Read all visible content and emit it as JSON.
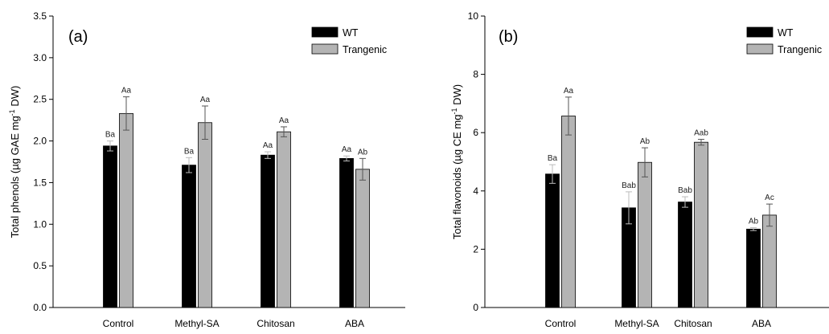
{
  "colors": {
    "WT": "#000000",
    "Trangenic": "#b4b4b4",
    "axis": "#000000",
    "error_bar": "#555555"
  },
  "chart_data": [
    {
      "type": "bar",
      "panel_label": "(a)",
      "ylabel_parts": [
        "Total phenols (µg GAE mg",
        "-1",
        " DW)"
      ],
      "categories": [
        "Control",
        "Methyl-SA",
        "Chitosan",
        "ABA"
      ],
      "ylim": [
        0,
        3.5
      ],
      "yticks": [
        "0.0",
        "0.5",
        "1.0",
        "1.5",
        "2.0",
        "2.5",
        "3.0",
        "3.5"
      ],
      "legend_position": "top-right",
      "series": [
        {
          "name": "WT",
          "values": [
            1.94,
            1.71,
            1.83,
            1.79
          ],
          "errors": [
            0.06,
            0.09,
            0.04,
            0.03
          ],
          "letters": [
            "Ba",
            "Ba",
            "Aa",
            "Aa"
          ]
        },
        {
          "name": "Trangenic",
          "values": [
            2.33,
            2.22,
            2.11,
            1.66
          ],
          "errors": [
            0.2,
            0.2,
            0.06,
            0.13
          ],
          "letters": [
            "Aa",
            "Aa",
            "Aa",
            "Ab"
          ]
        }
      ]
    },
    {
      "type": "bar",
      "panel_label": "(b)",
      "ylabel_parts": [
        "Total flavonoids (µg CE mg",
        "-1",
        " DW)"
      ],
      "categories": [
        "Control",
        "Methyl-SA",
        "Chitosan",
        "ABA"
      ],
      "ylim": [
        0,
        10
      ],
      "yticks": [
        "0",
        "2",
        "4",
        "6",
        "8",
        "10"
      ],
      "legend_position": "top-right",
      "series": [
        {
          "name": "WT",
          "values": [
            4.58,
            3.42,
            3.62,
            2.69
          ],
          "errors": [
            0.32,
            0.55,
            0.18,
            0.05
          ],
          "letters": [
            "Ba",
            "Bab",
            "Bab",
            "Ab"
          ]
        },
        {
          "name": "Trangenic",
          "values": [
            6.57,
            4.98,
            5.67,
            3.17
          ],
          "errors": [
            0.65,
            0.5,
            0.1,
            0.38
          ],
          "letters": [
            "Aa",
            "Ab",
            "Aab",
            "Ac"
          ]
        }
      ]
    }
  ]
}
